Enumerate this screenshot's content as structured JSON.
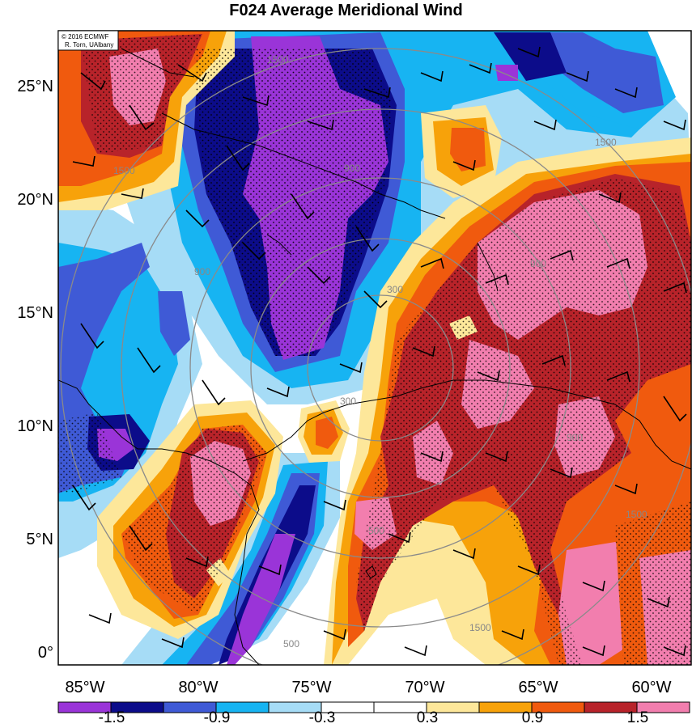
{
  "title": "F024 Average Meridional Wind",
  "credit": {
    "line1": "© 2016 ECMWF",
    "line2": "R. Torn, UAlbany"
  },
  "axes": {
    "lat_labels": [
      "25°N",
      "20°N",
      "15°N",
      "10°N",
      "5°N",
      "0°"
    ],
    "lon_labels": [
      "85°W",
      "80°W",
      "75°W",
      "70°W",
      "65°W",
      "60°W"
    ]
  },
  "colorbar": {
    "colors": [
      "#9a34d8",
      "#0c0c8a",
      "#3f5ad6",
      "#17b4f2",
      "#a6dcf6",
      "#ffffff",
      "#ffffff",
      "#fde79a",
      "#f7a20a",
      "#f05a0e",
      "#b8232a",
      "#f27eae"
    ],
    "labels": [
      "-1.5",
      "-0.9",
      "-0.3",
      "0.3",
      "0.9",
      "1.5"
    ]
  },
  "range_rings": {
    "labels": [
      "300",
      "300",
      "900",
      "900",
      "900",
      "1500",
      "1500",
      "1500",
      "1500",
      "1500",
      "900",
      "500",
      "500"
    ]
  },
  "fill_colors": {
    "purple": "#9a34d8",
    "navy": "#0c0c8a",
    "blue": "#3f5ad6",
    "cyan": "#17b4f2",
    "lightblue": "#a6dcf6",
    "yellow": "#fde79a",
    "orange": "#f7a20a",
    "redorange": "#f05a0e",
    "darkred": "#b8232a",
    "pink": "#f27eae"
  }
}
